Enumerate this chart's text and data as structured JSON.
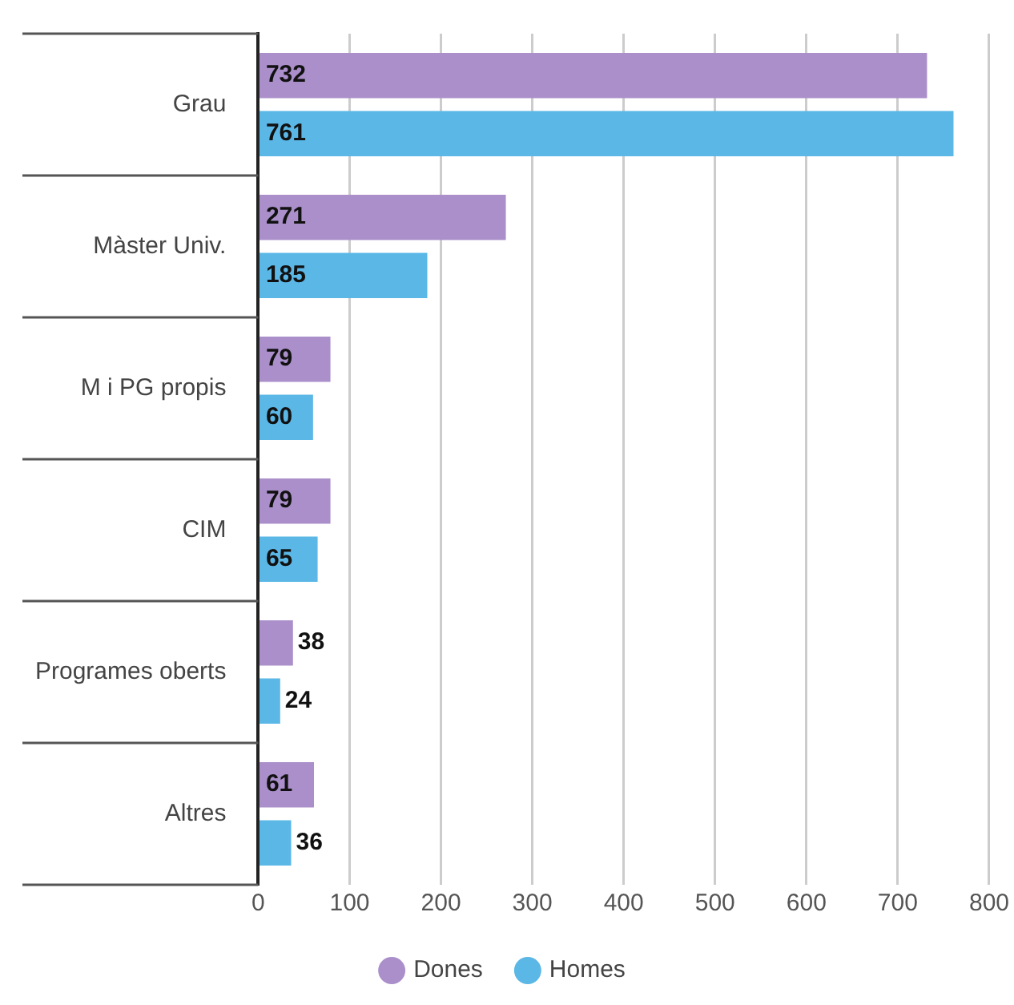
{
  "chart_data": {
    "type": "bar",
    "orientation": "horizontal",
    "categories": [
      "Grau",
      "Màster Univ.",
      "M i PG propis",
      "CIM",
      "Programes oberts",
      "Altres"
    ],
    "series": [
      {
        "name": "Dones",
        "color": "#aa8fca",
        "values": [
          732,
          271,
          79,
          79,
          38,
          61
        ]
      },
      {
        "name": "Homes",
        "color": "#5bb7e6",
        "values": [
          761,
          185,
          60,
          65,
          24,
          36
        ]
      }
    ],
    "xlim": [
      0,
      800
    ],
    "xticks": [
      0,
      100,
      200,
      300,
      400,
      500,
      600,
      700,
      800
    ],
    "grid": "x",
    "legend": "bottom",
    "data_labels": true
  }
}
